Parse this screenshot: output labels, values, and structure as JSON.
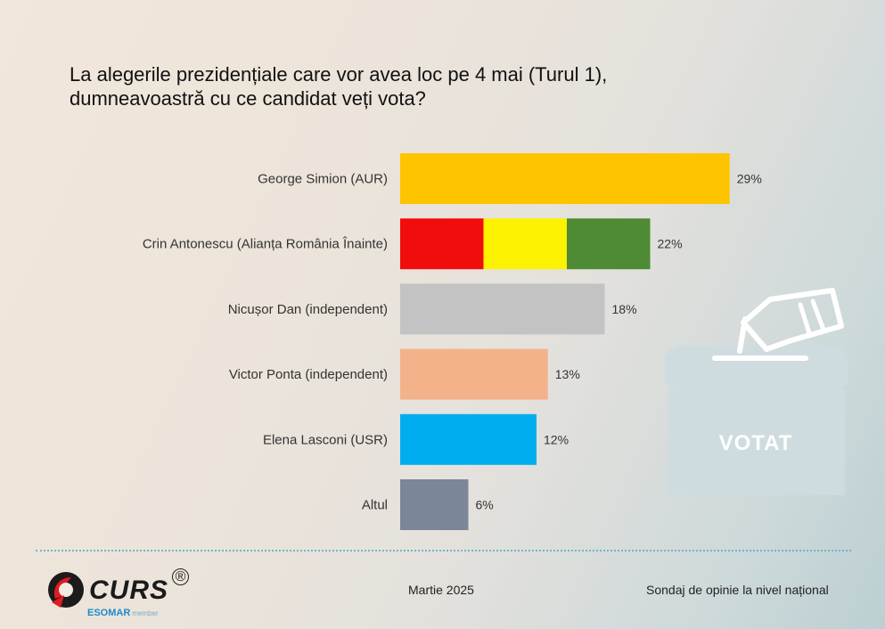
{
  "question": {
    "line1": "La alegerile prezidențiale care vor avea loc pe 4 mai (Turul 1),",
    "line2": "dumneavoastră cu ce candidat veți vota?"
  },
  "chart_data": {
    "type": "bar",
    "orientation": "horizontal",
    "title": "La alegerile prezidențiale care vor avea loc pe 4 mai (Turul 1), dumneavoastră cu ce candidat veți vota?",
    "categories": [
      "George Simion (AUR)",
      "Crin Antonescu (Alianța România Înainte)",
      "Nicușor Dan (independent)",
      "Victor Ponta (independent)",
      "Elena Lasconi (USR)",
      "Altul"
    ],
    "values": [
      29,
      22,
      18,
      13,
      12,
      6
    ],
    "value_labels": [
      "29%",
      "22%",
      "18%",
      "13%",
      "12%",
      "6%"
    ],
    "colors": [
      [
        "#ffc400"
      ],
      [
        "#f20d0d",
        "#fdf200",
        "#4f8a35"
      ],
      [
        "#c3c3c3"
      ],
      [
        "#f4b28a"
      ],
      [
        "#00aeef"
      ],
      [
        "#7b8699"
      ]
    ],
    "unit": "%",
    "xlim": [
      0,
      30
    ],
    "grid": false,
    "xlabel": "",
    "ylabel": ""
  },
  "ballot_box": {
    "label": "VOTAT",
    "icon": "ballot-box-icon"
  },
  "footer": {
    "logo_text": "CURS",
    "logo_mark": "®",
    "esomar": "ESOMAR",
    "esomar_sub": "member",
    "date": "Martie 2025",
    "source": "Sondaj de opinie la nivel național"
  }
}
